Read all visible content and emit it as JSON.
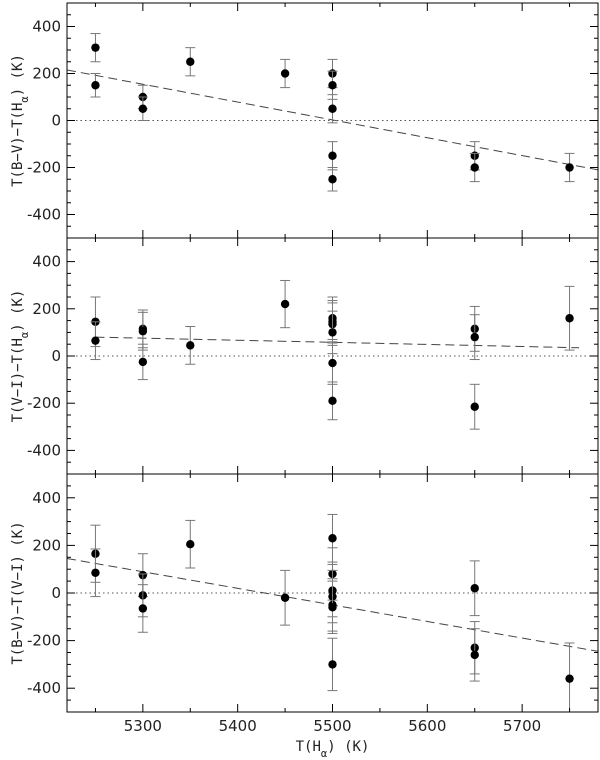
{
  "chart_data": {
    "type": "scatter",
    "xlabel": "T(H_α) (K)",
    "xlim": [
      5220,
      5780
    ],
    "x_ticks": [
      5300,
      5400,
      5500,
      5600,
      5700
    ],
    "panels": [
      {
        "ylabel": "T(B−V)−T(H_α) (K)",
        "ylim": [
          -500,
          500
        ],
        "y_ticks": [
          -400,
          -200,
          0,
          200,
          400
        ],
        "fit_line": {
          "x": [
            5220,
            5780
          ],
          "y": [
            215,
            -210
          ]
        },
        "points": [
          {
            "x": 5250,
            "y": 310,
            "err": 60
          },
          {
            "x": 5250,
            "y": 150,
            "err": 50
          },
          {
            "x": 5300,
            "y": 100,
            "err": 50
          },
          {
            "x": 5300,
            "y": 50,
            "err": 50
          },
          {
            "x": 5350,
            "y": 250,
            "err": 60
          },
          {
            "x": 5450,
            "y": 200,
            "err": 60
          },
          {
            "x": 5500,
            "y": 200,
            "err": 60
          },
          {
            "x": 5500,
            "y": 150,
            "err": 60
          },
          {
            "x": 5500,
            "y": 50,
            "err": 60
          },
          {
            "x": 5500,
            "y": -150,
            "err": 60
          },
          {
            "x": 5500,
            "y": -250,
            "err": 50
          },
          {
            "x": 5650,
            "y": -150,
            "err": 60
          },
          {
            "x": 5650,
            "y": -200,
            "err": 60
          },
          {
            "x": 5750,
            "y": -200,
            "err": 60
          }
        ]
      },
      {
        "ylabel": "T(V−I)−T(H_α) (K)",
        "ylim": [
          -500,
          500
        ],
        "y_ticks": [
          -400,
          -200,
          0,
          200,
          400
        ],
        "fit_line": {
          "x": [
            5250,
            5760
          ],
          "y": [
            80,
            35
          ]
        },
        "points": [
          {
            "x": 5250,
            "y": 145,
            "err": 105
          },
          {
            "x": 5250,
            "y": 65,
            "err": 80
          },
          {
            "x": 5300,
            "y": 115,
            "err": 80
          },
          {
            "x": 5300,
            "y": 105,
            "err": 80
          },
          {
            "x": 5300,
            "y": -25,
            "err": 75
          },
          {
            "x": 5350,
            "y": 45,
            "err": 80
          },
          {
            "x": 5450,
            "y": 220,
            "err": 100
          },
          {
            "x": 5500,
            "y": 160,
            "err": 90
          },
          {
            "x": 5500,
            "y": 145,
            "err": 90
          },
          {
            "x": 5500,
            "y": 135,
            "err": 90
          },
          {
            "x": 5500,
            "y": 100,
            "err": 90
          },
          {
            "x": 5500,
            "y": -30,
            "err": 90
          },
          {
            "x": 5500,
            "y": -190,
            "err": 80
          },
          {
            "x": 5650,
            "y": 115,
            "err": 95
          },
          {
            "x": 5650,
            "y": 80,
            "err": 95
          },
          {
            "x": 5650,
            "y": -215,
            "err": 95
          },
          {
            "x": 5750,
            "y": 160,
            "err": 135
          }
        ]
      },
      {
        "ylabel": "T(B−V)−T(V−I) (K)",
        "ylim": [
          -500,
          500
        ],
        "y_ticks": [
          -400,
          -200,
          0,
          200,
          400
        ],
        "fit_line": {
          "x": [
            5220,
            5780
          ],
          "y": [
            145,
            -245
          ]
        },
        "points": [
          {
            "x": 5250,
            "y": 165,
            "err": 120
          },
          {
            "x": 5250,
            "y": 85,
            "err": 100
          },
          {
            "x": 5300,
            "y": 75,
            "err": 90
          },
          {
            "x": 5300,
            "y": -10,
            "err": 90
          },
          {
            "x": 5300,
            "y": -65,
            "err": 100
          },
          {
            "x": 5350,
            "y": 205,
            "err": 100
          },
          {
            "x": 5450,
            "y": -20,
            "err": 115
          },
          {
            "x": 5500,
            "y": 230,
            "err": 100
          },
          {
            "x": 5500,
            "y": 80,
            "err": 110
          },
          {
            "x": 5500,
            "y": 10,
            "err": 110
          },
          {
            "x": 5500,
            "y": -15,
            "err": 110
          },
          {
            "x": 5500,
            "y": -50,
            "err": 110
          },
          {
            "x": 5500,
            "y": -60,
            "err": 110
          },
          {
            "x": 5500,
            "y": -300,
            "err": 110
          },
          {
            "x": 5650,
            "y": 20,
            "err": 115
          },
          {
            "x": 5650,
            "y": -230,
            "err": 110
          },
          {
            "x": 5650,
            "y": -260,
            "err": 110
          },
          {
            "x": 5750,
            "y": -360,
            "err": 150
          }
        ]
      }
    ]
  }
}
